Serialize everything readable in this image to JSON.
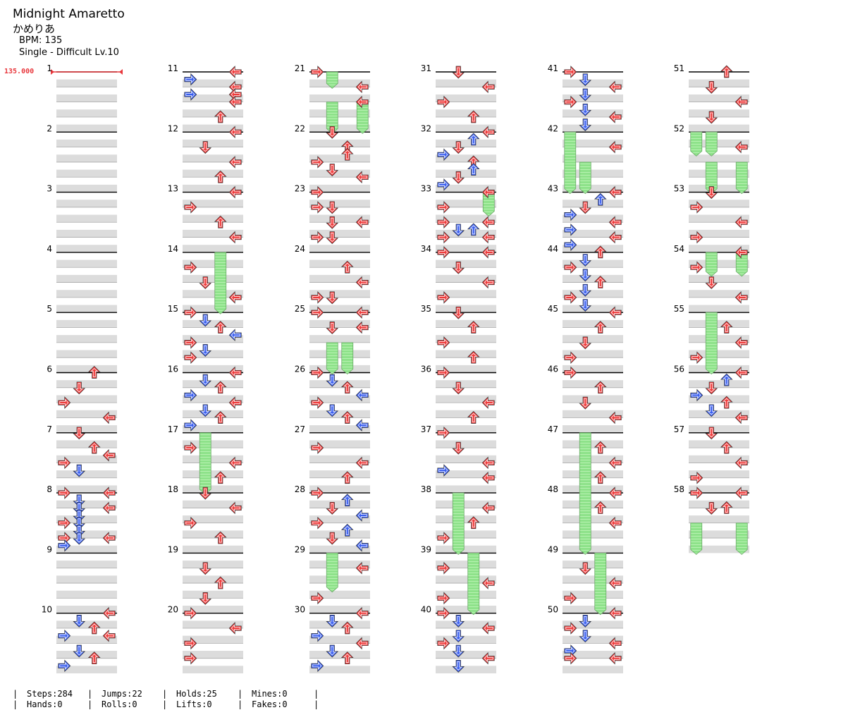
{
  "song": {
    "title": "Midnight Amaretto",
    "artist": "かめりあ",
    "bpm_label": "BPM: 135",
    "difficulty_label": "Single - Difficult Lv.10"
  },
  "bpm_change_label": "135.000",
  "colors": {
    "red_arrow": "#ef3b3b",
    "blue_arrow": "#3a5ff0",
    "hold_fill": "#8ee28a",
    "band": "#dcdcdc"
  },
  "chart_layout": {
    "measures": 58,
    "columns": 6,
    "measures_per_column": 10,
    "lanes": [
      "left",
      "down",
      "up",
      "right"
    ]
  },
  "measure_labels": [
    "1",
    "2",
    "3",
    "4",
    "5",
    "6",
    "7",
    "8",
    "9",
    "10",
    "11",
    "12",
    "13",
    "14",
    "15",
    "16",
    "17",
    "18",
    "19",
    "20",
    "21",
    "22",
    "23",
    "24",
    "25",
    "26",
    "27",
    "28",
    "29",
    "30",
    "31",
    "32",
    "33",
    "34",
    "35",
    "36",
    "37",
    "38",
    "39",
    "40",
    "41",
    "42",
    "43",
    "44",
    "45",
    "46",
    "47",
    "48",
    "49",
    "50",
    "51",
    "52",
    "53",
    "54",
    "55",
    "56",
    "57",
    "58"
  ],
  "notes": [
    [
      6,
      0,
      2,
      "r"
    ],
    [
      6,
      1,
      1,
      "r"
    ],
    [
      6,
      2,
      0,
      "r"
    ],
    [
      6,
      3,
      3,
      "r"
    ],
    [
      7,
      0,
      1,
      "r"
    ],
    [
      7,
      1,
      2,
      "r"
    ],
    [
      7,
      1.5,
      3,
      "r"
    ],
    [
      7,
      2,
      0,
      "r"
    ],
    [
      7,
      2.5,
      1,
      "b"
    ],
    [
      8,
      0,
      0,
      "r"
    ],
    [
      8,
      0,
      3,
      "r"
    ],
    [
      8,
      0.5,
      1,
      "b"
    ],
    [
      8,
      1,
      1,
      "b"
    ],
    [
      8,
      1,
      3,
      "r"
    ],
    [
      8,
      1.5,
      1,
      "b"
    ],
    [
      8,
      2,
      0,
      "r"
    ],
    [
      8,
      2,
      1,
      "b"
    ],
    [
      8,
      2.5,
      1,
      "b"
    ],
    [
      8,
      3,
      0,
      "r"
    ],
    [
      8,
      3,
      1,
      "b"
    ],
    [
      8,
      3,
      3,
      "r"
    ],
    [
      8,
      3.5,
      0,
      "b"
    ],
    [
      10,
      0,
      3,
      "r"
    ],
    [
      10,
      0.5,
      1,
      "b"
    ],
    [
      10,
      1,
      2,
      "r"
    ],
    [
      10,
      1.5,
      0,
      "b"
    ],
    [
      10,
      1.5,
      3,
      "r"
    ],
    [
      10,
      2.5,
      1,
      "b"
    ],
    [
      10,
      3,
      2,
      "r"
    ],
    [
      10,
      3.5,
      0,
      "b"
    ],
    [
      11,
      0,
      3,
      "r"
    ],
    [
      11,
      0.5,
      0,
      "b"
    ],
    [
      11,
      1,
      3,
      "r"
    ],
    [
      11,
      1.5,
      0,
      "b"
    ],
    [
      11,
      1.5,
      3,
      "r"
    ],
    [
      11,
      2,
      3,
      "r"
    ],
    [
      11,
      3,
      2,
      "r"
    ],
    [
      12,
      0,
      3,
      "r"
    ],
    [
      12,
      1,
      1,
      "r"
    ],
    [
      12,
      2,
      3,
      "r"
    ],
    [
      12,
      3,
      2,
      "r"
    ],
    [
      13,
      0,
      3,
      "r"
    ],
    [
      13,
      1,
      0,
      "r"
    ],
    [
      13,
      2,
      2,
      "r"
    ],
    [
      13,
      3,
      3,
      "r"
    ],
    [
      14,
      1,
      0,
      "r"
    ],
    [
      14,
      2,
      1,
      "r"
    ],
    [
      14,
      3,
      3,
      "r"
    ],
    [
      15,
      0,
      0,
      "r"
    ],
    [
      15,
      0.5,
      1,
      "b"
    ],
    [
      15,
      1,
      2,
      "r"
    ],
    [
      15,
      1.5,
      3,
      "b"
    ],
    [
      15,
      2,
      0,
      "r"
    ],
    [
      15,
      2.5,
      1,
      "b"
    ],
    [
      15,
      3,
      0,
      "r"
    ],
    [
      16,
      0,
      3,
      "r"
    ],
    [
      16,
      0.5,
      1,
      "b"
    ],
    [
      16,
      1,
      2,
      "r"
    ],
    [
      16,
      1.5,
      0,
      "b"
    ],
    [
      16,
      2,
      3,
      "r"
    ],
    [
      16,
      2.5,
      1,
      "b"
    ],
    [
      16,
      3,
      2,
      "r"
    ],
    [
      16,
      3.5,
      0,
      "b"
    ],
    [
      17,
      1,
      0,
      "r"
    ],
    [
      17,
      2,
      3,
      "r"
    ],
    [
      17,
      3,
      2,
      "r"
    ],
    [
      18,
      0,
      1,
      "r"
    ],
    [
      18,
      1,
      3,
      "r"
    ],
    [
      18,
      2,
      0,
      "r"
    ],
    [
      18,
      3,
      2,
      "r"
    ],
    [
      19,
      1,
      1,
      "r"
    ],
    [
      19,
      2,
      2,
      "r"
    ],
    [
      19,
      3,
      1,
      "r"
    ],
    [
      20,
      0,
      0,
      "r"
    ],
    [
      20,
      1,
      3,
      "r"
    ],
    [
      20,
      2,
      0,
      "r"
    ],
    [
      20,
      3,
      0,
      "r"
    ],
    [
      21,
      0,
      0,
      "r"
    ],
    [
      21,
      1,
      3,
      "r"
    ],
    [
      21,
      2,
      3,
      "r"
    ],
    [
      22,
      0,
      1,
      "r"
    ],
    [
      22,
      1,
      2,
      "r"
    ],
    [
      22,
      1.5,
      2,
      "r"
    ],
    [
      22,
      2,
      0,
      "r"
    ],
    [
      22,
      2.5,
      1,
      "r"
    ],
    [
      22,
      3,
      3,
      "r"
    ],
    [
      23,
      0,
      0,
      "r"
    ],
    [
      23,
      1,
      0,
      "r"
    ],
    [
      23,
      1,
      1,
      "r"
    ],
    [
      23,
      2,
      1,
      "r"
    ],
    [
      23,
      2,
      3,
      "r"
    ],
    [
      23,
      3,
      0,
      "r"
    ],
    [
      23,
      3,
      1,
      "r"
    ],
    [
      24,
      1,
      2,
      "r"
    ],
    [
      24,
      2,
      3,
      "r"
    ],
    [
      24,
      3,
      0,
      "r"
    ],
    [
      24,
      3,
      1,
      "r"
    ],
    [
      25,
      0,
      0,
      "r"
    ],
    [
      25,
      0,
      3,
      "r"
    ],
    [
      25,
      1,
      1,
      "r"
    ],
    [
      25,
      1,
      3,
      "r"
    ],
    [
      26,
      0,
      0,
      "r"
    ],
    [
      26,
      0.5,
      1,
      "b"
    ],
    [
      26,
      1,
      2,
      "r"
    ],
    [
      26,
      1.5,
      3,
      "b"
    ],
    [
      26,
      2,
      0,
      "r"
    ],
    [
      26,
      2.5,
      1,
      "b"
    ],
    [
      26,
      3,
      2,
      "r"
    ],
    [
      26,
      3.5,
      3,
      "b"
    ],
    [
      27,
      1,
      0,
      "r"
    ],
    [
      27,
      2,
      3,
      "r"
    ],
    [
      27,
      3,
      2,
      "r"
    ],
    [
      28,
      0,
      0,
      "r"
    ],
    [
      28,
      0.5,
      2,
      "b"
    ],
    [
      28,
      1,
      1,
      "r"
    ],
    [
      28,
      1.5,
      3,
      "b"
    ],
    [
      28,
      2,
      0,
      "r"
    ],
    [
      28,
      2.5,
      2,
      "b"
    ],
    [
      28,
      3,
      1,
      "r"
    ],
    [
      28,
      3.5,
      3,
      "b"
    ],
    [
      29,
      1,
      3,
      "r"
    ],
    [
      29,
      3,
      0,
      "r"
    ],
    [
      30,
      0,
      3,
      "r"
    ],
    [
      30,
      0.5,
      1,
      "b"
    ],
    [
      30,
      1,
      2,
      "r"
    ],
    [
      30,
      1.5,
      0,
      "b"
    ],
    [
      30,
      2,
      3,
      "r"
    ],
    [
      30,
      2.5,
      1,
      "b"
    ],
    [
      30,
      3,
      2,
      "r"
    ],
    [
      30,
      3.5,
      0,
      "b"
    ],
    [
      31,
      0,
      1,
      "r"
    ],
    [
      31,
      1,
      3,
      "r"
    ],
    [
      31,
      2,
      0,
      "r"
    ],
    [
      31,
      3,
      2,
      "r"
    ],
    [
      32,
      0,
      3,
      "r"
    ],
    [
      32,
      0.5,
      2,
      "b"
    ],
    [
      32,
      1,
      1,
      "r"
    ],
    [
      32,
      1.5,
      0,
      "b"
    ],
    [
      32,
      2,
      2,
      "r"
    ],
    [
      32,
      2.5,
      2,
      "b"
    ],
    [
      32,
      3,
      1,
      "r"
    ],
    [
      32,
      3.5,
      0,
      "b"
    ],
    [
      33,
      0,
      3,
      "r"
    ],
    [
      33,
      1,
      0,
      "r"
    ],
    [
      33,
      2,
      0,
      "r"
    ],
    [
      33,
      2,
      3,
      "r"
    ],
    [
      33,
      2.5,
      1,
      "b"
    ],
    [
      33,
      2.5,
      2,
      "b"
    ],
    [
      33,
      3,
      0,
      "r"
    ],
    [
      33,
      3,
      3,
      "r"
    ],
    [
      34,
      0,
      0,
      "r"
    ],
    [
      34,
      0,
      3,
      "r"
    ],
    [
      34,
      1,
      1,
      "r"
    ],
    [
      34,
      2,
      3,
      "r"
    ],
    [
      34,
      3,
      0,
      "r"
    ],
    [
      35,
      0,
      1,
      "r"
    ],
    [
      35,
      1,
      2,
      "r"
    ],
    [
      35,
      2,
      0,
      "r"
    ],
    [
      35,
      3,
      2,
      "r"
    ],
    [
      36,
      0,
      0,
      "r"
    ],
    [
      36,
      1,
      1,
      "r"
    ],
    [
      36,
      2,
      3,
      "r"
    ],
    [
      36,
      3,
      2,
      "r"
    ],
    [
      37,
      0,
      0,
      "r"
    ],
    [
      37,
      1,
      1,
      "r"
    ],
    [
      37,
      2,
      3,
      "r"
    ],
    [
      37,
      2.5,
      0,
      "b"
    ],
    [
      37,
      3,
      3,
      "r"
    ],
    [
      38,
      1,
      3,
      "r"
    ],
    [
      38,
      2,
      2,
      "r"
    ],
    [
      38,
      3,
      0,
      "r"
    ],
    [
      39,
      1,
      0,
      "r"
    ],
    [
      39,
      2,
      3,
      "r"
    ],
    [
      39,
      3,
      0,
      "r"
    ],
    [
      40,
      0,
      0,
      "r"
    ],
    [
      40,
      0.5,
      1,
      "b"
    ],
    [
      40,
      1,
      3,
      "r"
    ],
    [
      40,
      1.5,
      1,
      "b"
    ],
    [
      40,
      2,
      0,
      "r"
    ],
    [
      40,
      2.5,
      1,
      "b"
    ],
    [
      40,
      3,
      3,
      "r"
    ],
    [
      40,
      3.5,
      1,
      "b"
    ],
    [
      41,
      0,
      0,
      "r"
    ],
    [
      41,
      0.5,
      1,
      "b"
    ],
    [
      41,
      1,
      3,
      "r"
    ],
    [
      41,
      1.5,
      1,
      "b"
    ],
    [
      41,
      2,
      0,
      "r"
    ],
    [
      41,
      2.5,
      1,
      "b"
    ],
    [
      41,
      3,
      3,
      "r"
    ],
    [
      41,
      3.5,
      1,
      "b"
    ],
    [
      42,
      1,
      3,
      "r"
    ],
    [
      43,
      0,
      3,
      "r"
    ],
    [
      43,
      0.5,
      2,
      "b"
    ],
    [
      43,
      1,
      1,
      "r"
    ],
    [
      43,
      1.5,
      0,
      "b"
    ],
    [
      43,
      2,
      3,
      "r"
    ],
    [
      43,
      2.5,
      0,
      "b"
    ],
    [
      43,
      3,
      3,
      "r"
    ],
    [
      43,
      3.5,
      0,
      "b"
    ],
    [
      44,
      0,
      2,
      "r"
    ],
    [
      44,
      0.5,
      1,
      "b"
    ],
    [
      44,
      1,
      0,
      "r"
    ],
    [
      44,
      1.5,
      1,
      "b"
    ],
    [
      44,
      2,
      2,
      "r"
    ],
    [
      44,
      2.5,
      1,
      "b"
    ],
    [
      44,
      3,
      0,
      "r"
    ],
    [
      44,
      3.5,
      1,
      "b"
    ],
    [
      45,
      0,
      3,
      "r"
    ],
    [
      45,
      1,
      2,
      "r"
    ],
    [
      45,
      2,
      1,
      "r"
    ],
    [
      45,
      3,
      0,
      "r"
    ],
    [
      46,
      0,
      0,
      "r"
    ],
    [
      46,
      1,
      2,
      "r"
    ],
    [
      46,
      2,
      1,
      "r"
    ],
    [
      46,
      3,
      3,
      "r"
    ],
    [
      47,
      1,
      2,
      "r"
    ],
    [
      47,
      2,
      3,
      "r"
    ],
    [
      47,
      3,
      2,
      "r"
    ],
    [
      48,
      0,
      3,
      "r"
    ],
    [
      48,
      1,
      2,
      "r"
    ],
    [
      48,
      2,
      3,
      "r"
    ],
    [
      49,
      1,
      1,
      "r"
    ],
    [
      49,
      2,
      3,
      "r"
    ],
    [
      49,
      3,
      0,
      "r"
    ],
    [
      50,
      0,
      3,
      "r"
    ],
    [
      50,
      0.5,
      1,
      "b"
    ],
    [
      50,
      1,
      0,
      "r"
    ],
    [
      50,
      1.5,
      1,
      "b"
    ],
    [
      50,
      2,
      3,
      "r"
    ],
    [
      50,
      2.5,
      0,
      "b"
    ],
    [
      50,
      3,
      0,
      "r"
    ],
    [
      50,
      3,
      3,
      "r"
    ],
    [
      51,
      0,
      2,
      "r"
    ],
    [
      51,
      1,
      1,
      "r"
    ],
    [
      51,
      2,
      3,
      "r"
    ],
    [
      51,
      3,
      1,
      "r"
    ],
    [
      52,
      1,
      3,
      "r"
    ],
    [
      53,
      0,
      1,
      "r"
    ],
    [
      53,
      1,
      0,
      "r"
    ],
    [
      53,
      2,
      3,
      "r"
    ],
    [
      53,
      3,
      0,
      "r"
    ],
    [
      54,
      0,
      3,
      "r"
    ],
    [
      54,
      1,
      0,
      "r"
    ],
    [
      54,
      2,
      1,
      "r"
    ],
    [
      54,
      3,
      3,
      "r"
    ],
    [
      55,
      1,
      2,
      "r"
    ],
    [
      55,
      2,
      3,
      "r"
    ],
    [
      55,
      3,
      0,
      "r"
    ],
    [
      56,
      0,
      3,
      "r"
    ],
    [
      56,
      0.5,
      2,
      "b"
    ],
    [
      56,
      1,
      1,
      "r"
    ],
    [
      56,
      1.5,
      0,
      "b"
    ],
    [
      56,
      2,
      2,
      "r"
    ],
    [
      56,
      2.5,
      1,
      "b"
    ],
    [
      56,
      3,
      3,
      "r"
    ],
    [
      57,
      0,
      1,
      "r"
    ],
    [
      57,
      1,
      2,
      "r"
    ],
    [
      57,
      2,
      3,
      "r"
    ],
    [
      57,
      3,
      0,
      "r"
    ],
    [
      58,
      0,
      0,
      "r"
    ],
    [
      58,
      0,
      3,
      "r"
    ],
    [
      58,
      1,
      1,
      "r"
    ],
    [
      58,
      1,
      2,
      "r"
    ]
  ],
  "holds": [
    [
      14,
      0,
      2,
      15,
      0
    ],
    [
      17,
      0,
      1,
      18,
      0
    ],
    [
      21,
      0,
      1,
      21,
      1
    ],
    [
      21,
      0,
      1.0001,
      21,
      1
    ],
    [
      21,
      2,
      1,
      22,
      0
    ],
    [
      21,
      2,
      3,
      22,
      0
    ],
    [
      25,
      2,
      1,
      26,
      0
    ],
    [
      25,
      2,
      2,
      26,
      0
    ],
    [
      29,
      0,
      1,
      29,
      2.5
    ],
    [
      33,
      0,
      3,
      33,
      1.5
    ],
    [
      38,
      0,
      1,
      39,
      0
    ],
    [
      39,
      0,
      2,
      40,
      0
    ],
    [
      42,
      0,
      0,
      43,
      0
    ],
    [
      42,
      2,
      1,
      43,
      0
    ],
    [
      47,
      0,
      1,
      49,
      0
    ],
    [
      49,
      0,
      2,
      50,
      0
    ],
    [
      52,
      0,
      0,
      52,
      1.5
    ],
    [
      52,
      0,
      1,
      52,
      1.5
    ],
    [
      52,
      2,
      1,
      53,
      0
    ],
    [
      52,
      2,
      3,
      53,
      0
    ],
    [
      54,
      0,
      1,
      54,
      1.5
    ],
    [
      54,
      0,
      3,
      54,
      1.5
    ],
    [
      55,
      0,
      1,
      56,
      0
    ],
    [
      58,
      2,
      0,
      58,
      4
    ],
    [
      58,
      2,
      3,
      58,
      4
    ]
  ],
  "stats": {
    "steps": "Steps:284",
    "hands": "Hands:0",
    "jumps": "Jumps:22",
    "rolls": "Rolls:0",
    "holds": "Holds:25",
    "lifts": "Lifts:0",
    "mines": "Mines:0",
    "fakes": "Fakes:0",
    "separator": "|"
  }
}
